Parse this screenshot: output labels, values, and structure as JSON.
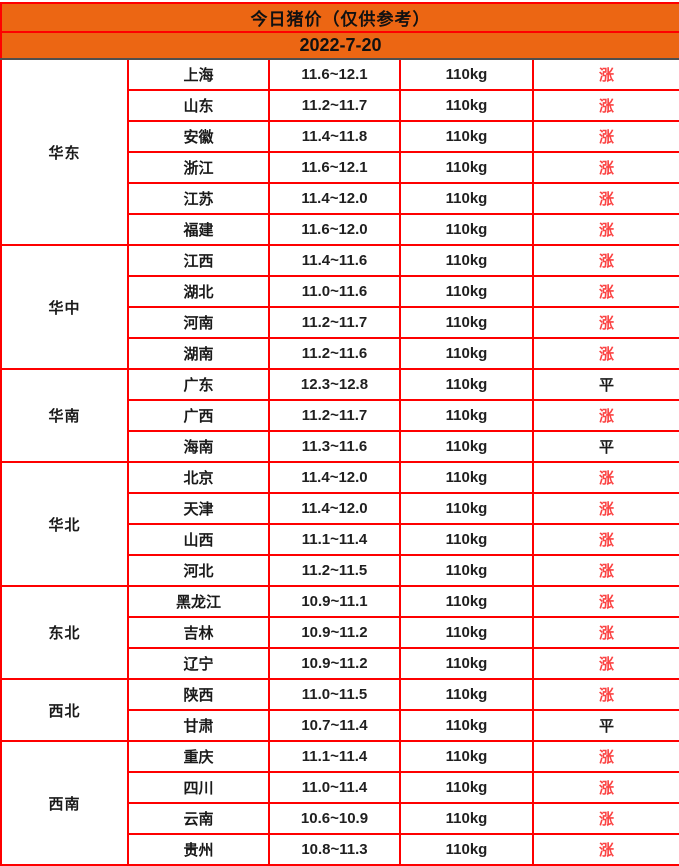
{
  "header": {
    "title": "今日猪价（仅供参考）",
    "date": "2022-7-20"
  },
  "colors": {
    "header_bg": "#ec6613",
    "border_red": "#fe0000",
    "divider_dark": "#4f4f4f",
    "trend_up_red": "#fb4343",
    "trend_flat_black": "#1a1a1a"
  },
  "table": {
    "regions": [
      {
        "name": "华东",
        "rows": [
          {
            "province": "上海",
            "price": "11.6~12.1",
            "weight": "110kg",
            "trend": "涨",
            "trend_type": "up"
          },
          {
            "province": "山东",
            "price": "11.2~11.7",
            "weight": "110kg",
            "trend": "涨",
            "trend_type": "up"
          },
          {
            "province": "安徽",
            "price": "11.4~11.8",
            "weight": "110kg",
            "trend": "涨",
            "trend_type": "up"
          },
          {
            "province": "浙江",
            "price": "11.6~12.1",
            "weight": "110kg",
            "trend": "涨",
            "trend_type": "up"
          },
          {
            "province": "江苏",
            "price": "11.4~12.0",
            "weight": "110kg",
            "trend": "涨",
            "trend_type": "up"
          },
          {
            "province": "福建",
            "price": "11.6~12.0",
            "weight": "110kg",
            "trend": "涨",
            "trend_type": "up"
          }
        ]
      },
      {
        "name": "华中",
        "rows": [
          {
            "province": "江西",
            "price": "11.4~11.6",
            "weight": "110kg",
            "trend": "涨",
            "trend_type": "up"
          },
          {
            "province": "湖北",
            "price": "11.0~11.6",
            "weight": "110kg",
            "trend": "涨",
            "trend_type": "up"
          },
          {
            "province": "河南",
            "price": "11.2~11.7",
            "weight": "110kg",
            "trend": "涨",
            "trend_type": "up"
          },
          {
            "province": "湖南",
            "price": "11.2~11.6",
            "weight": "110kg",
            "trend": "涨",
            "trend_type": "up"
          }
        ]
      },
      {
        "name": "华南",
        "rows": [
          {
            "province": "广东",
            "price": "12.3~12.8",
            "weight": "110kg",
            "trend": "平",
            "trend_type": "flat"
          },
          {
            "province": "广西",
            "price": "11.2~11.7",
            "weight": "110kg",
            "trend": "涨",
            "trend_type": "up"
          },
          {
            "province": "海南",
            "price": "11.3~11.6",
            "weight": "110kg",
            "trend": "平",
            "trend_type": "flat"
          }
        ]
      },
      {
        "name": "华北",
        "rows": [
          {
            "province": "北京",
            "price": "11.4~12.0",
            "weight": "110kg",
            "trend": "涨",
            "trend_type": "up"
          },
          {
            "province": "天津",
            "price": "11.4~12.0",
            "weight": "110kg",
            "trend": "涨",
            "trend_type": "up"
          },
          {
            "province": "山西",
            "price": "11.1~11.4",
            "weight": "110kg",
            "trend": "涨",
            "trend_type": "up"
          },
          {
            "province": "河北",
            "price": "11.2~11.5",
            "weight": "110kg",
            "trend": "涨",
            "trend_type": "up"
          }
        ]
      },
      {
        "name": "东北",
        "rows": [
          {
            "province": "黑龙江",
            "price": "10.9~11.1",
            "weight": "110kg",
            "trend": "涨",
            "trend_type": "up"
          },
          {
            "province": "吉林",
            "price": "10.9~11.2",
            "weight": "110kg",
            "trend": "涨",
            "trend_type": "up"
          },
          {
            "province": "辽宁",
            "price": "10.9~11.2",
            "weight": "110kg",
            "trend": "涨",
            "trend_type": "up"
          }
        ]
      },
      {
        "name": "西北",
        "rows": [
          {
            "province": "陕西",
            "price": "11.0~11.5",
            "weight": "110kg",
            "trend": "涨",
            "trend_type": "up"
          },
          {
            "province": "甘肃",
            "price": "10.7~11.4",
            "weight": "110kg",
            "trend": "平",
            "trend_type": "flat"
          }
        ]
      },
      {
        "name": "西南",
        "rows": [
          {
            "province": "重庆",
            "price": "11.1~11.4",
            "weight": "110kg",
            "trend": "涨",
            "trend_type": "up"
          },
          {
            "province": "四川",
            "price": "11.0~11.4",
            "weight": "110kg",
            "trend": "涨",
            "trend_type": "up"
          },
          {
            "province": "云南",
            "price": "10.6~10.9",
            "weight": "110kg",
            "trend": "涨",
            "trend_type": "up"
          },
          {
            "province": "贵州",
            "price": "10.8~11.3",
            "weight": "110kg",
            "trend": "涨",
            "trend_type": "up"
          }
        ]
      }
    ]
  }
}
